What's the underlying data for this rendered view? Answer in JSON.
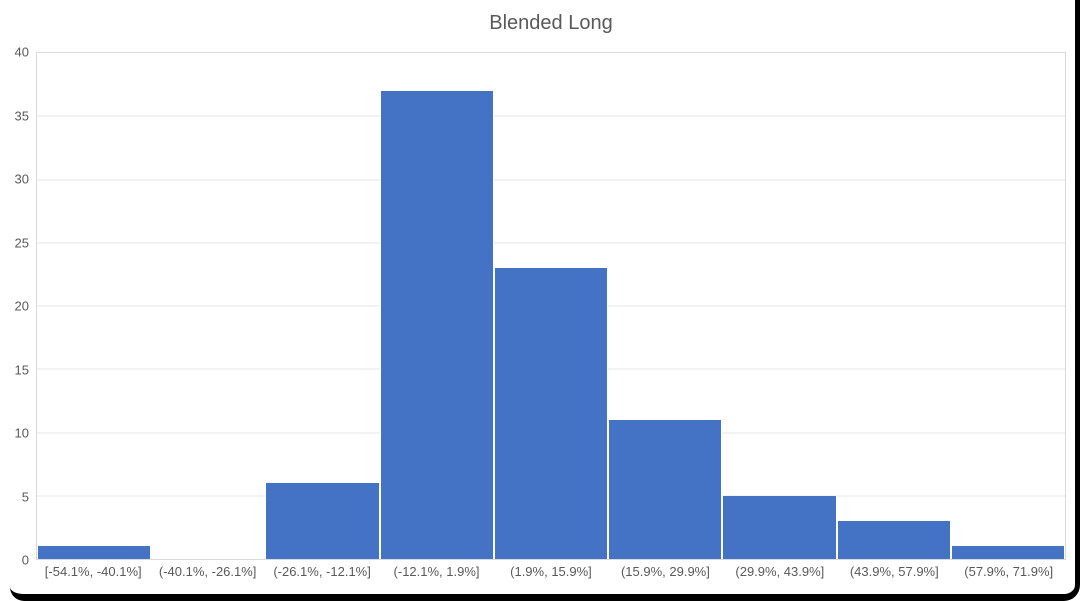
{
  "chart_data": {
    "type": "bar",
    "title": "Blended Long",
    "categories": [
      "[-54.1%, -40.1%]",
      "(-40.1%, -26.1%]",
      "(-26.1%, -12.1%]",
      "(-12.1%, 1.9%]",
      "(1.9%, 15.9%]",
      "(15.9%, 29.9%]",
      "(29.9%, 43.9%]",
      "(43.9%, 57.9%]",
      "(57.9%, 71.9%]"
    ],
    "values": [
      1,
      0,
      6,
      37,
      23,
      11,
      5,
      3,
      1
    ],
    "xlabel": "",
    "ylabel": "",
    "ylim": [
      0,
      40
    ],
    "ytick_step": 5,
    "yticks": [
      0,
      5,
      10,
      15,
      20,
      25,
      30,
      35,
      40
    ],
    "grid": true,
    "legend": false,
    "bar_color": "#4472C4",
    "bar_edge_color": "#FFFFFF",
    "gridline_color": "#E6E6E6",
    "plot_border_color": "#D9D9D9",
    "axis_text_color": "#595959",
    "title_color": "#595959",
    "frame_color": "#000000"
  }
}
